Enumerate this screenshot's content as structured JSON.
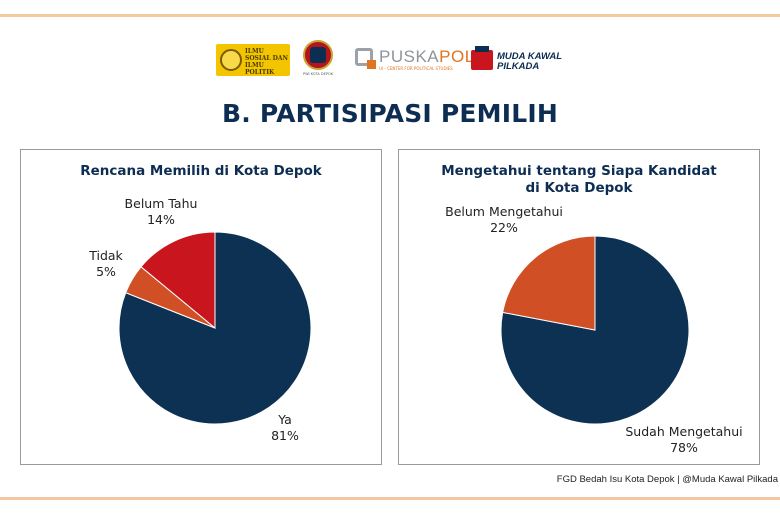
{
  "logos": {
    "ugm_text": "ILMU SOSIAL DAN ILMU POLITIK",
    "depok_caption": "PWI KOTA DEPOK",
    "puskapol_a": "PUSKA",
    "puskapol_b": "POL",
    "puskapol_sub": "UI - CENTER FOR POLITICAL STUDIES",
    "mkp_line1": "MUDA KAWAL",
    "mkp_line2": "PILKADA"
  },
  "title": "B. PARTISIPASI PEMILIH",
  "colors": {
    "navy": "#0d3152",
    "orange": "#d04f24",
    "red": "#c8151e"
  },
  "chart_data": [
    {
      "type": "pie",
      "title": "Rencana Memilih di Kota Depok",
      "slices": [
        {
          "label": "Ya",
          "value": 81,
          "display": "81%",
          "color": "#0d3152"
        },
        {
          "label": "Tidak",
          "value": 5,
          "display": "5%",
          "color": "#d04f24"
        },
        {
          "label": "Belum Tahu",
          "value": 14,
          "display": "14%",
          "color": "#c8151e"
        }
      ]
    },
    {
      "type": "pie",
      "title_line1": "Mengetahui tentang Siapa Kandidat",
      "title_line2": "di Kota Depok",
      "slices": [
        {
          "label": "Sudah Mengetahui",
          "value": 78,
          "display": "78%",
          "color": "#0d3152"
        },
        {
          "label": "Belum Mengetahui",
          "value": 22,
          "display": "22%",
          "color": "#d04f24"
        }
      ]
    }
  ],
  "footer": "FGD Bedah Isu Kota Depok | @Muda Kawal Pilkada"
}
